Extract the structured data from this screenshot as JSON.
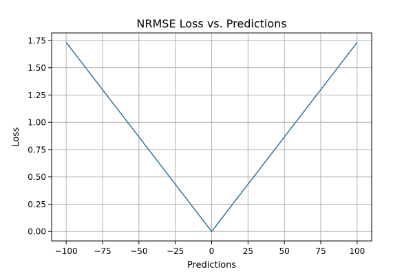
{
  "chart_data": {
    "type": "line",
    "title": "NRMSE Loss vs. Predictions",
    "xlabel": "Predictions",
    "ylabel": "Loss",
    "xlim": [
      -110,
      110
    ],
    "ylim": [
      -0.0866,
      1.8187
    ],
    "xticks": [
      -100,
      -75,
      -50,
      -25,
      0,
      25,
      50,
      75,
      100
    ],
    "xtick_labels": [
      "−100",
      "−75",
      "−50",
      "−25",
      "0",
      "25",
      "50",
      "75",
      "100"
    ],
    "yticks": [
      0.0,
      0.25,
      0.5,
      0.75,
      1.0,
      1.25,
      1.5,
      1.75
    ],
    "ytick_labels": [
      "0.00",
      "0.25",
      "0.50",
      "0.75",
      "1.00",
      "1.25",
      "1.50",
      "1.75"
    ],
    "grid": true,
    "series": [
      {
        "color": "#3a7ca5",
        "x": [
          -100,
          0,
          100
        ],
        "y": [
          1.732,
          0.0,
          1.732
        ]
      }
    ]
  }
}
